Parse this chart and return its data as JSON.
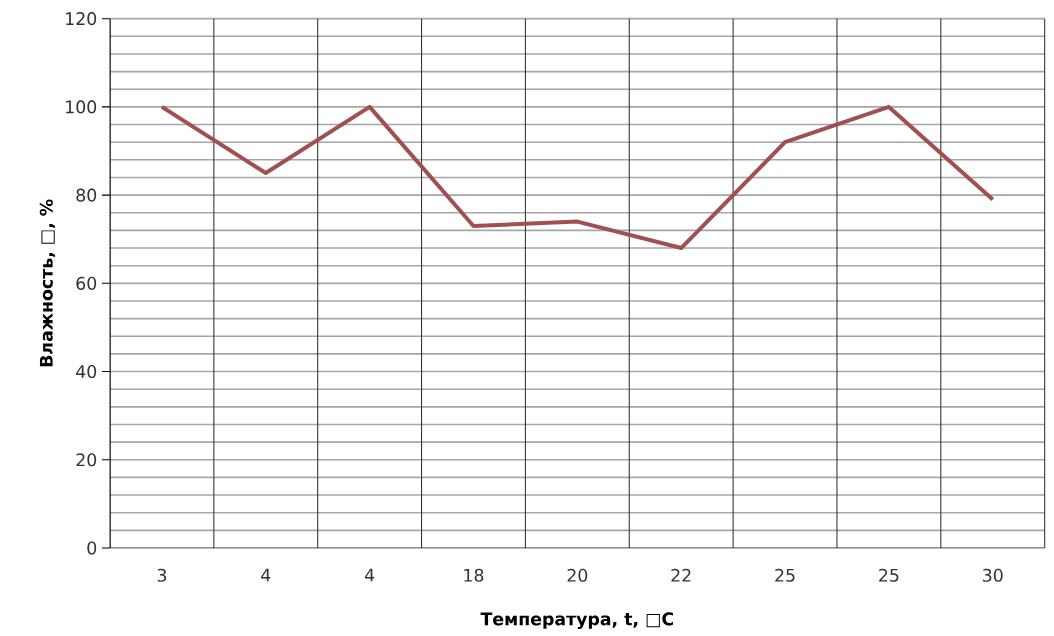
{
  "chart_data": {
    "type": "line",
    "xlabel": "Температура, t, □C",
    "ylabel": "Влажность, □, %",
    "categories": [
      "3",
      "4",
      "4",
      "18",
      "20",
      "22",
      "25",
      "25",
      "30"
    ],
    "series": [
      {
        "color": "#a05050",
        "values": [
          100,
          85,
          100,
          73,
          74,
          68,
          92,
          100,
          79
        ]
      }
    ],
    "ylim": [
      0,
      120
    ],
    "yticks": [
      0,
      20,
      40,
      60,
      80,
      100,
      120
    ],
    "grid": true,
    "marker": "none",
    "line_style": "solid"
  }
}
